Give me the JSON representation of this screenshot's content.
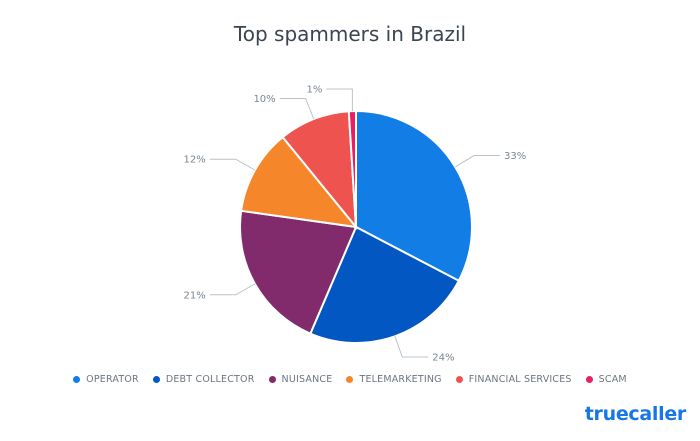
{
  "chart_data": {
    "type": "pie",
    "title": "Top spammers in Brazil",
    "categories": [
      "OPERATOR",
      "DEBT COLLECTOR",
      "NUISANCE",
      "TELEMARKETING",
      "FINANCIAL SERVICES",
      "SCAM"
    ],
    "values": [
      33,
      24,
      21,
      12,
      10,
      1
    ],
    "labels": [
      "33%",
      "24%",
      "21%",
      "12%",
      "10%",
      "1%"
    ],
    "colors": [
      "#137de6",
      "#0357c3",
      "#812a6c",
      "#f5862a",
      "#ef5350",
      "#e91e63"
    ],
    "legend_position": "bottom"
  },
  "brand": {
    "name": "truecaller",
    "color": "#1877e6"
  }
}
